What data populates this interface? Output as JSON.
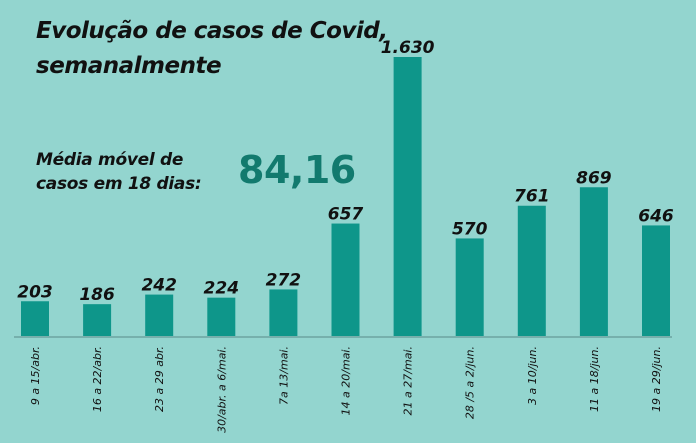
{
  "header": {
    "title_line1": "Evolução de casos de Covid,",
    "title_line2": "semanalmente",
    "avg_label_line1": "Média móvel de",
    "avg_label_line2": "casos em 18 dias:",
    "avg_value": "84,16"
  },
  "colors": {
    "background": "#93d5cf",
    "bar": "#0e968a",
    "accent_value": "#127a6e",
    "text": "#111111"
  },
  "chart_data": {
    "type": "bar",
    "title": "Evolução de casos de Covid, semanalmente",
    "xlabel": "",
    "ylabel": "",
    "ylim": [
      0,
      1630
    ],
    "grid": false,
    "categories": [
      "9 a 15/abr.",
      "16 a 22/abr.",
      "23 a 29 abr.",
      "30/abr. a 6/mai.",
      "7a 13/mai.",
      "14 a 20/mai.",
      "21 a 27/mai.",
      "28 /5 a  2/jun.",
      "3 a 10/jun.",
      "11 a 18/jun.",
      "19 a 29/jun."
    ],
    "values": [
      203,
      186,
      242,
      224,
      272,
      657,
      1630,
      570,
      761,
      869,
      646
    ],
    "value_labels": [
      "203",
      "186",
      "242",
      "224",
      "272",
      "657",
      "1.630",
      "570",
      "761",
      "869",
      "646"
    ]
  }
}
